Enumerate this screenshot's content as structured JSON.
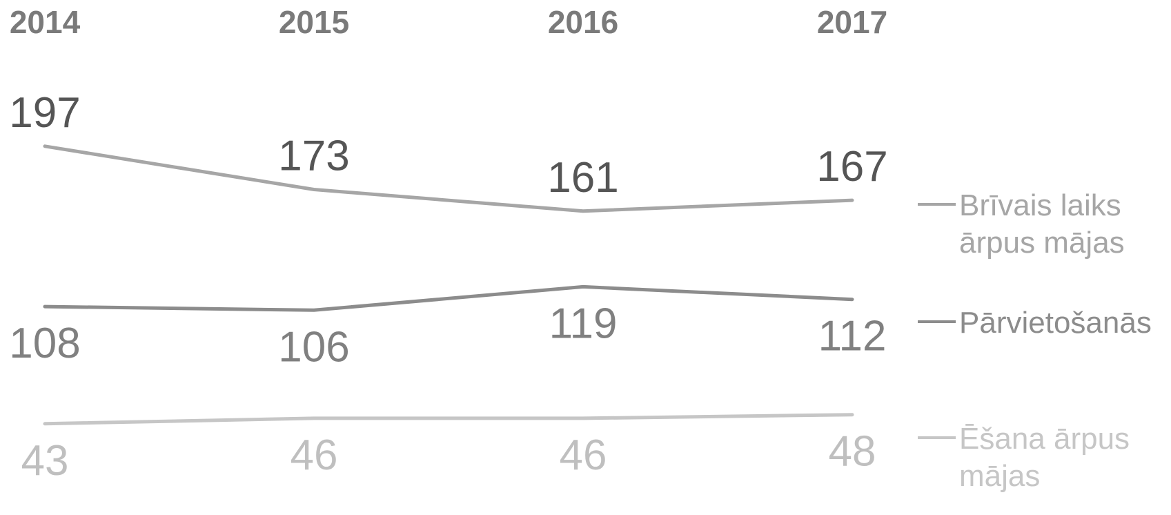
{
  "chart_data": {
    "type": "line",
    "x": [
      "2014",
      "2015",
      "2016",
      "2017"
    ],
    "series": [
      {
        "name": "Brīvais laiks ārpus mājas",
        "legend_lines": [
          "Brīvais laiks",
          "ārpus mājas"
        ],
        "values": [
          197,
          173,
          161,
          167
        ],
        "line_color": "#a6a6a6",
        "label_color": "#555555",
        "legend_color": "#a6a6a6",
        "label_position": "above"
      },
      {
        "name": "Pārvietošanās",
        "legend_lines": [
          "Pārvietošanās"
        ],
        "values": [
          108,
          106,
          119,
          112
        ],
        "line_color": "#8c8c8c",
        "label_color": "#808080",
        "legend_color": "#8c8c8c",
        "label_position": "below"
      },
      {
        "name": "Ēšana ārpus mājas",
        "legend_lines": [
          "Ēšana ārpus",
          "mājas"
        ],
        "values": [
          43,
          46,
          46,
          48
        ],
        "line_color": "#c6c6c6",
        "label_color": "#bfbfbf",
        "legend_color": "#c6c6c6",
        "label_position": "below"
      }
    ],
    "year_label_color": "#7a7a7a",
    "grid": false,
    "legend_position": "right",
    "title": "",
    "xlabel": "",
    "ylabel": ""
  }
}
